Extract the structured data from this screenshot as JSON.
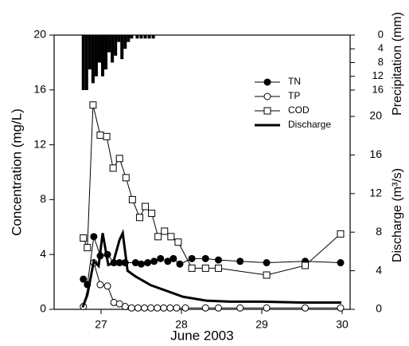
{
  "chart_data": {
    "type": "line",
    "xlabel": "June 2003",
    "ylabel": "Concentration (mg/L)",
    "y2label": "Discharge (m³/s)",
    "y3label": "Precipitation (mm)",
    "xlim": [
      26.416,
      30.099
    ],
    "xticks": [
      27,
      28,
      29,
      30
    ],
    "ylim": [
      0,
      20
    ],
    "yticks": [
      0,
      4,
      8,
      12,
      16,
      20
    ],
    "y2lim": [
      0,
      28.43
    ],
    "y2ticks": [
      0,
      4,
      8,
      12,
      16,
      20
    ],
    "y3lim": [
      0,
      79.8
    ],
    "y3ticks": [
      0,
      4,
      8,
      12,
      16
    ],
    "y3_inverted": true,
    "legend": "upper-right",
    "series": [
      {
        "name": "TN",
        "color": "#000000",
        "marker": "filled-circle",
        "line_width": 1,
        "x": [
          26.78,
          26.83,
          26.91,
          26.99,
          27.08,
          27.16,
          27.23,
          27.3,
          27.43,
          27.5,
          27.58,
          27.66,
          27.74,
          27.83,
          27.9,
          27.98,
          28.13,
          28.3,
          28.46,
          28.73,
          29.06,
          29.54,
          29.98
        ],
        "values": [
          2.2,
          1.8,
          5.3,
          3.9,
          4.0,
          3.4,
          3.4,
          3.4,
          3.4,
          3.3,
          3.4,
          3.5,
          3.7,
          3.5,
          3.7,
          3.3,
          3.7,
          3.7,
          3.6,
          3.5,
          3.4,
          3.5,
          3.4
        ]
      },
      {
        "name": "TP",
        "color": "#000000",
        "marker": "open-circle",
        "line_width": 1,
        "x": [
          26.78,
          26.91,
          26.99,
          27.08,
          27.16,
          27.23,
          27.3,
          27.38,
          27.46,
          27.54,
          27.62,
          27.7,
          27.78,
          27.86,
          27.94,
          28.05,
          28.3,
          28.46,
          28.73,
          29.06,
          29.54,
          29.98
        ],
        "values": [
          0.2,
          3.4,
          1.8,
          1.7,
          0.5,
          0.4,
          0.2,
          0.1,
          0.1,
          0.1,
          0.1,
          0.1,
          0.1,
          0.1,
          0.1,
          0.1,
          0.1,
          0.1,
          0.1,
          0.1,
          0.1,
          0.1
        ]
      },
      {
        "name": "COD",
        "color": "#000000",
        "marker": "open-square",
        "line_width": 1,
        "x": [
          26.78,
          26.83,
          26.9,
          26.99,
          27.07,
          27.15,
          27.23,
          27.31,
          27.39,
          27.48,
          27.55,
          27.63,
          27.71,
          27.79,
          27.87,
          27.96,
          28.13,
          28.3,
          28.46,
          29.06,
          29.54,
          29.98
        ],
        "values": [
          5.2,
          4.5,
          14.9,
          12.7,
          12.6,
          10.3,
          11.0,
          9.6,
          8.0,
          6.7,
          7.5,
          7.0,
          5.3,
          5.7,
          5.3,
          4.9,
          3.0,
          3.0,
          3.0,
          2.5,
          3.2,
          5.5
        ]
      },
      {
        "name": "Discharge",
        "color": "#000000",
        "marker": "none",
        "line_width": 3,
        "axis": "y2",
        "x": [
          26.77,
          26.83,
          26.91,
          26.97,
          27.02,
          27.09,
          27.15,
          27.23,
          27.27,
          27.33,
          27.43,
          27.62,
          27.82,
          28.02,
          28.31,
          28.61,
          29.0,
          29.5,
          29.99
        ],
        "values": [
          0.2,
          1.5,
          5.0,
          4.5,
          7.9,
          4.6,
          4.8,
          7.2,
          7.9,
          4.0,
          3.4,
          2.5,
          1.9,
          1.3,
          0.9,
          0.8,
          0.8,
          0.7,
          0.7
        ]
      }
    ],
    "precipitation": {
      "color": "#000000",
      "axis": "y3",
      "bar_width": 0.04,
      "x": [
        26.78,
        26.82,
        26.86,
        26.9,
        26.94,
        26.98,
        27.02,
        27.06,
        27.1,
        27.14,
        27.18,
        27.22,
        27.26,
        27.3,
        27.34,
        27.38,
        27.45,
        27.5,
        27.55,
        27.6,
        27.65
      ],
      "values": [
        16,
        16,
        10,
        14,
        12,
        8,
        12,
        10,
        5,
        8,
        6,
        2,
        7,
        4,
        2,
        1,
        1,
        1,
        1,
        1,
        1
      ]
    }
  }
}
